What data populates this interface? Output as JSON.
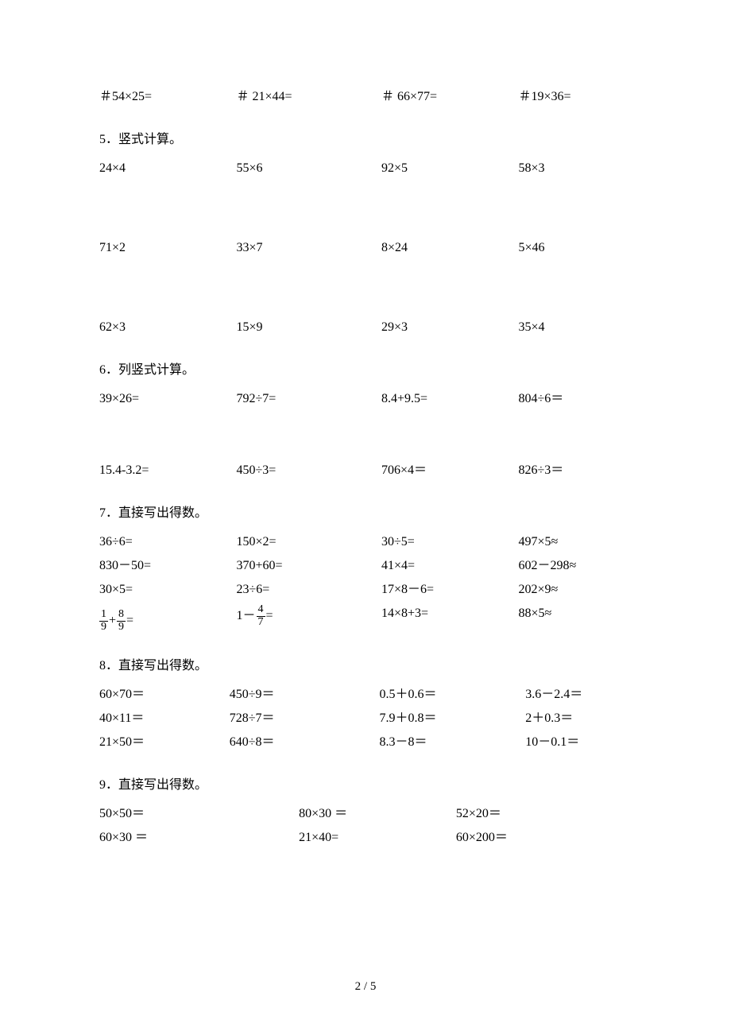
{
  "page": {
    "number": "2 / 5",
    "background_color": "#ffffff",
    "text_color": "#000000",
    "font_family": "SimSun",
    "font_size_pt": 12
  },
  "top_row": [
    "＃54×25=",
    "＃ 21×44=",
    "＃ 66×77=",
    "＃19×36="
  ],
  "sections": {
    "s5": {
      "title": "5．竖式计算。",
      "rows": [
        [
          "24×4",
          "55×6",
          "92×5",
          "58×3"
        ],
        [
          "71×2",
          "33×7",
          "8×24",
          "5×46"
        ],
        [
          "62×3",
          "15×9",
          "29×3",
          "35×4"
        ]
      ]
    },
    "s6": {
      "title": "6．列竖式计算。",
      "rows": [
        [
          "39×26=",
          "792÷7=",
          "8.4+9.5=",
          "804÷6＝"
        ],
        [
          "15.4-3.2=",
          "450÷3=",
          "706×4＝",
          "826÷3＝"
        ]
      ]
    },
    "s7": {
      "title": "7．直接写出得数。",
      "rows": [
        [
          "36÷6=",
          "150×2=",
          "30÷5=",
          "497×5≈"
        ],
        [
          "830－50=",
          "370+60=",
          "41×4=",
          "602－298≈"
        ],
        [
          "30×5=",
          "23÷6=",
          "17×8－6=",
          "202×9≈"
        ]
      ],
      "frac_row": {
        "c1": {
          "f1_num": "1",
          "f1_den": "9",
          "op": "+",
          "f2_num": "8",
          "f2_den": "9",
          "eq": "="
        },
        "c2": {
          "lead": "1－",
          "f_num": "4",
          "f_den": "7",
          "eq": "="
        },
        "c3": "14×8+3=",
        "c4": "88×5≈"
      }
    },
    "s8": {
      "title": "8．直接写出得数。",
      "rows": [
        [
          "60×70＝",
          "450÷9＝",
          "0.5＋0.6＝",
          "3.6－2.4＝"
        ],
        [
          "40×11＝",
          "728÷7＝",
          "7.9＋0.8＝",
          "2＋0.3＝"
        ],
        [
          "21×50＝",
          "640÷8＝",
          "8.3－8＝",
          "10－0.1＝"
        ]
      ]
    },
    "s9": {
      "title": "9．直接写出得数。",
      "rows": [
        [
          "50×50＝",
          "80×30 ＝",
          "52×20＝"
        ],
        [
          "60×30 ＝",
          "21×40=",
          "60×200＝"
        ]
      ]
    }
  }
}
